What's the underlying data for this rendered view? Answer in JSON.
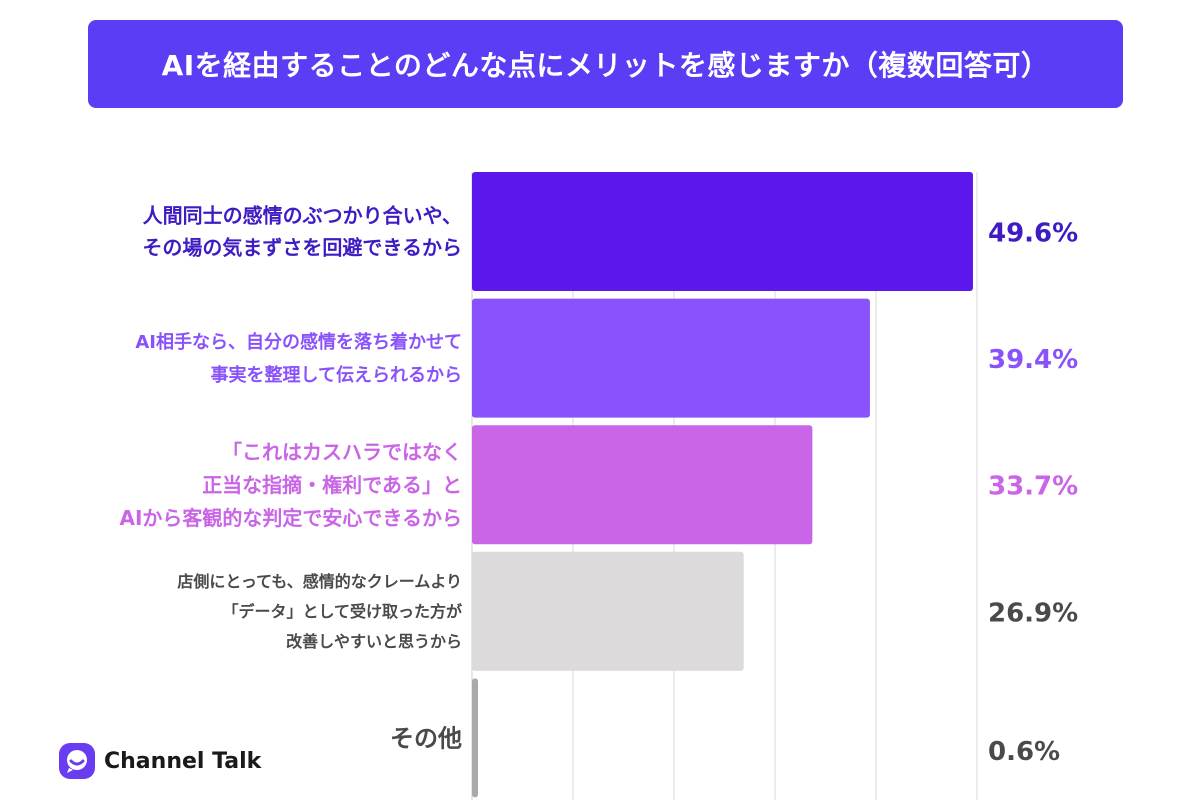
{
  "title": "AIを経由することのどんな点にメリットを感じますか（複数回答可）",
  "brand": {
    "name": "Channel Talk",
    "logo_icon": "channel-talk-chat-bubble-icon"
  },
  "colors": {
    "banner": "#5b3df5",
    "grid": "#d9d9d9"
  },
  "chart_data": {
    "type": "bar",
    "orientation": "horizontal",
    "title": "AIを経由することのどんな点にメリットを感じますか（複数回答可）",
    "xlim": [
      0,
      50
    ],
    "grid": true,
    "categories": [
      [
        "人間同士の感情のぶつかり合いや、",
        "その場の気まずさを回避できるから"
      ],
      [
        "AI相手なら、自分の感情を落ち着かせて",
        "事実を整理して伝えられるから"
      ],
      [
        "「これはカスハラではなく",
        "正当な指摘・権利である」と",
        "AIから客観的な判定で安心できるから"
      ],
      [
        "店側にとっても、感情的なクレームより",
        "「データ」として受け取った方が",
        "改善しやすいと思うから"
      ],
      [
        "その他"
      ]
    ],
    "values": [
      49.6,
      39.4,
      33.7,
      26.9,
      0.6
    ],
    "value_labels": [
      "49.6%",
      "39.4%",
      "33.7%",
      "26.9%",
      "0.6%"
    ],
    "bar_colors": [
      "#5b17ec",
      "#8a52fb",
      "#c965e6",
      "#dcdadb",
      "#a9a9a9"
    ],
    "label_colors": [
      "#3f1bc4",
      "#8a52fb",
      "#c965e6",
      "#4a4a4a",
      "#4a4a4a"
    ],
    "value_colors": [
      "#3f1bc4",
      "#8a52fb",
      "#c965e6",
      "#4a4a4a",
      "#4a4a4a"
    ]
  }
}
